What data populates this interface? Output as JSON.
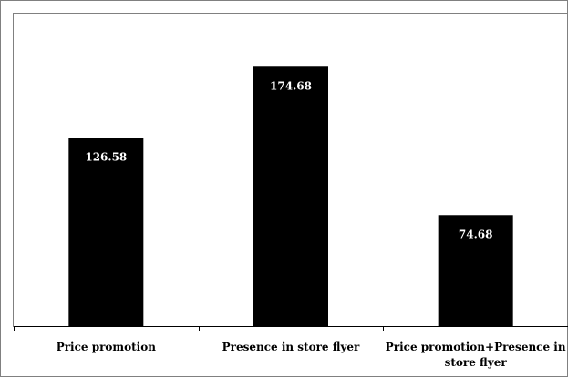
{
  "chart_data": {
    "type": "bar",
    "title": "",
    "xlabel": "",
    "ylabel": "",
    "categories": [
      [
        "Price promotion"
      ],
      [
        "Presence in store flyer"
      ],
      [
        "Price promotion+Presence in",
        "store flyer"
      ]
    ],
    "values": [
      126.58,
      174.68,
      74.68
    ],
    "data_labels": [
      "126.58",
      "174.68",
      "74.68"
    ],
    "ylim": [
      0,
      200
    ],
    "grid": false,
    "legend": "none",
    "bar_color": "#000000",
    "label_color": "#ffffff"
  }
}
